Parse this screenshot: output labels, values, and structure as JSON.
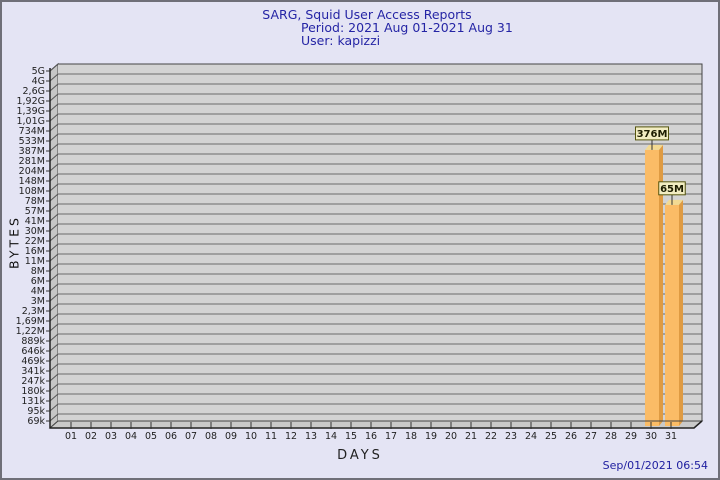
{
  "title": {
    "line1": "SARG, Squid User Access Reports",
    "line2": "Period: 2021 Aug 01-2021 Aug 31",
    "line3": "User: kapizzi"
  },
  "axes": {
    "y_label": "BYTES",
    "x_label": "DAYS"
  },
  "footer": {
    "timestamp": "Sep/01/2021 06:54"
  },
  "chart_data": {
    "type": "bar",
    "title": "SARG, Squid User Access Reports",
    "subtitle": "Period: 2021 Aug 01-2021 Aug 31",
    "user": "kapizzi",
    "xlabel": "DAYS",
    "ylabel": "BYTES",
    "y_scale": "log",
    "grid": "horizontal",
    "y_tick_labels": [
      "5G",
      "4G",
      "2,6G",
      "1,92G",
      "1,39G",
      "1,01G",
      "734M",
      "533M",
      "387M",
      "281M",
      "204M",
      "148M",
      "108M",
      "78M",
      "57M",
      "41M",
      "30M",
      "22M",
      "16M",
      "11M",
      "8M",
      "6M",
      "4M",
      "3M",
      "2,3M",
      "1,69M",
      "1,22M",
      "889k",
      "646k",
      "469k",
      "341k",
      "247k",
      "180k",
      "131k",
      "95k",
      "69k"
    ],
    "x_tick_labels": [
      "01",
      "02",
      "03",
      "04",
      "05",
      "06",
      "07",
      "08",
      "09",
      "10",
      "11",
      "12",
      "13",
      "14",
      "15",
      "16",
      "17",
      "18",
      "19",
      "20",
      "21",
      "22",
      "23",
      "24",
      "25",
      "26",
      "27",
      "28",
      "29",
      "30",
      "31"
    ],
    "bars": [
      {
        "day": 30,
        "label": "376M",
        "value_bytes": 376000000
      },
      {
        "day": 31,
        "label": "65M",
        "value_bytes": 65000000
      }
    ],
    "note": "All other days (01-29) have no recorded bytes (no bars drawn)",
    "colors": {
      "background": "#e4e4f4",
      "panel": "#d3d3d3",
      "wall": "#c6c6c6",
      "floor": "#c9c9c9",
      "grid": "#6b6b6b",
      "axis": "#333333",
      "bar_face": "#fbbc66",
      "bar_side": "#df9b42",
      "bar_top": "#f3da92",
      "label_box_bg": "#f2edc2",
      "label_box_border": "#55550f",
      "title_text": "#2525a5"
    }
  }
}
